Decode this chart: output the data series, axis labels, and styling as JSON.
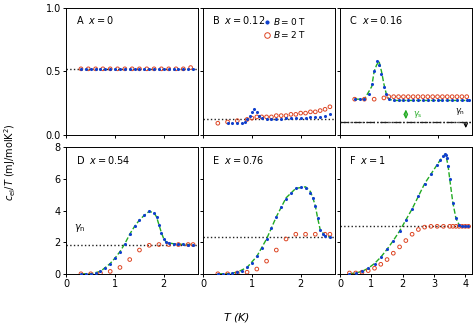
{
  "panels": [
    {
      "label": "A",
      "x_val": "0",
      "xlim": [
        0,
        2.7
      ],
      "ylim": [
        0,
        1.0
      ],
      "yticks": [
        0.0,
        0.5,
        1.0
      ],
      "xticks": [
        0,
        1,
        2
      ],
      "gamma_n": 0.52,
      "show_legend": false,
      "blue_data": {
        "T": [
          0.3,
          0.4,
          0.5,
          0.6,
          0.7,
          0.8,
          0.9,
          1.0,
          1.1,
          1.2,
          1.3,
          1.4,
          1.5,
          1.6,
          1.7,
          1.8,
          1.9,
          2.0,
          2.1,
          2.2,
          2.3,
          2.4,
          2.5,
          2.6
        ],
        "c": [
          0.52,
          0.52,
          0.52,
          0.52,
          0.52,
          0.52,
          0.52,
          0.52,
          0.52,
          0.52,
          0.52,
          0.52,
          0.52,
          0.52,
          0.52,
          0.52,
          0.52,
          0.52,
          0.52,
          0.52,
          0.52,
          0.52,
          0.52,
          0.52
        ]
      },
      "red_data": {
        "T": [
          0.3,
          0.45,
          0.6,
          0.75,
          0.9,
          1.05,
          1.2,
          1.35,
          1.5,
          1.65,
          1.8,
          1.95,
          2.1,
          2.25,
          2.4,
          2.55
        ],
        "c": [
          0.52,
          0.52,
          0.52,
          0.52,
          0.52,
          0.52,
          0.52,
          0.52,
          0.52,
          0.52,
          0.52,
          0.52,
          0.52,
          0.52,
          0.52,
          0.53
        ]
      },
      "green_dashed": null
    },
    {
      "label": "B",
      "x_val": "0.12",
      "xlim": [
        0,
        2.7
      ],
      "ylim": [
        0,
        1.0
      ],
      "yticks": [
        0.0,
        0.5,
        1.0
      ],
      "xticks": [
        0,
        1,
        2
      ],
      "gamma_n": 0.12,
      "show_legend": true,
      "blue_data": {
        "T": [
          0.5,
          0.6,
          0.7,
          0.8,
          0.85,
          0.9,
          0.95,
          1.0,
          1.05,
          1.1,
          1.15,
          1.2,
          1.3,
          1.4,
          1.5,
          1.6,
          1.7,
          1.8,
          1.9,
          2.0,
          2.1,
          2.2,
          2.3,
          2.4,
          2.5,
          2.6
        ],
        "c": [
          0.09,
          0.09,
          0.09,
          0.09,
          0.1,
          0.12,
          0.15,
          0.18,
          0.2,
          0.18,
          0.15,
          0.13,
          0.12,
          0.12,
          0.12,
          0.12,
          0.13,
          0.13,
          0.13,
          0.13,
          0.13,
          0.14,
          0.14,
          0.14,
          0.15,
          0.16
        ]
      },
      "red_data": {
        "T": [
          0.3,
          0.5,
          0.7,
          0.9,
          1.0,
          1.1,
          1.2,
          1.3,
          1.4,
          1.5,
          1.6,
          1.7,
          1.8,
          1.9,
          2.0,
          2.1,
          2.2,
          2.3,
          2.4,
          2.5,
          2.6
        ],
        "c": [
          0.09,
          0.1,
          0.11,
          0.12,
          0.13,
          0.14,
          0.14,
          0.14,
          0.14,
          0.15,
          0.15,
          0.15,
          0.16,
          0.16,
          0.17,
          0.17,
          0.18,
          0.18,
          0.19,
          0.2,
          0.22
        ]
      },
      "green_dashed": null
    },
    {
      "label": "C",
      "x_val": "0.16",
      "xlim": [
        0,
        2.7
      ],
      "ylim": [
        0,
        1.0
      ],
      "yticks": [
        0.0,
        0.5,
        1.0
      ],
      "xticks": [
        0,
        1,
        2
      ],
      "gamma_n": 0.1,
      "gamma_s": 0.22,
      "gamma_line": 0.28,
      "show_legend": false,
      "blue_data": {
        "T": [
          0.3,
          0.4,
          0.5,
          0.6,
          0.65,
          0.7,
          0.75,
          0.8,
          0.85,
          0.9,
          0.95,
          1.0,
          1.1,
          1.2,
          1.3,
          1.4,
          1.5,
          1.6,
          1.7,
          1.8,
          1.9,
          2.0,
          2.1,
          2.2,
          2.3,
          2.4,
          2.5,
          2.6,
          2.65
        ],
        "c": [
          0.28,
          0.28,
          0.28,
          0.32,
          0.4,
          0.5,
          0.58,
          0.55,
          0.48,
          0.38,
          0.32,
          0.28,
          0.27,
          0.27,
          0.27,
          0.27,
          0.27,
          0.27,
          0.27,
          0.27,
          0.27,
          0.27,
          0.27,
          0.27,
          0.27,
          0.27,
          0.27,
          0.27,
          0.27
        ]
      },
      "red_data": {
        "T": [
          0.3,
          0.5,
          0.7,
          0.9,
          1.0,
          1.1,
          1.2,
          1.3,
          1.4,
          1.5,
          1.6,
          1.7,
          1.8,
          1.9,
          2.0,
          2.1,
          2.2,
          2.3,
          2.4,
          2.5,
          2.6
        ],
        "c": [
          0.28,
          0.28,
          0.28,
          0.29,
          0.3,
          0.3,
          0.3,
          0.3,
          0.3,
          0.3,
          0.3,
          0.3,
          0.3,
          0.3,
          0.3,
          0.3,
          0.3,
          0.3,
          0.3,
          0.3,
          0.3
        ]
      },
      "green_dashed": {
        "T": [
          0.3,
          0.5,
          0.65,
          0.7,
          0.75,
          0.8,
          0.85,
          0.9,
          0.95,
          1.0,
          1.1,
          1.2,
          1.3,
          1.4,
          1.5,
          1.6,
          1.7,
          1.8,
          1.9,
          2.0,
          2.1,
          2.2,
          2.3,
          2.4,
          2.5,
          2.6
        ],
        "c": [
          0.28,
          0.28,
          0.38,
          0.5,
          0.55,
          0.58,
          0.5,
          0.4,
          0.32,
          0.28,
          0.27,
          0.27,
          0.27,
          0.27,
          0.27,
          0.27,
          0.27,
          0.27,
          0.27,
          0.27,
          0.27,
          0.27,
          0.27,
          0.27,
          0.27,
          0.27
        ]
      }
    },
    {
      "label": "D",
      "x_val": "0.54",
      "xlim": [
        0,
        2.7
      ],
      "ylim": [
        0,
        8
      ],
      "yticks": [
        0,
        2,
        4,
        6,
        8
      ],
      "xticks": [
        0,
        1,
        2
      ],
      "gamma_n": 1.85,
      "show_legend": false,
      "blue_data": {
        "T": [
          0.3,
          0.4,
          0.5,
          0.6,
          0.7,
          0.8,
          0.9,
          1.0,
          1.1,
          1.2,
          1.3,
          1.4,
          1.5,
          1.6,
          1.7,
          1.8,
          1.85,
          1.9,
          1.95,
          2.0,
          2.05,
          2.1,
          2.2,
          2.3,
          2.4,
          2.5,
          2.6
        ],
        "c": [
          0.0,
          0.0,
          0.0,
          0.05,
          0.15,
          0.35,
          0.65,
          1.0,
          1.4,
          1.9,
          2.5,
          3.0,
          3.4,
          3.7,
          3.95,
          3.85,
          3.6,
          3.1,
          2.6,
          2.2,
          2.0,
          1.95,
          1.9,
          1.87,
          1.86,
          1.85,
          1.85
        ]
      },
      "red_data": {
        "T": [
          0.3,
          0.5,
          0.7,
          0.9,
          1.1,
          1.3,
          1.5,
          1.7,
          1.9,
          2.1,
          2.3,
          2.5,
          2.6
        ],
        "c": [
          0.0,
          0.0,
          0.05,
          0.15,
          0.4,
          0.9,
          1.5,
          1.8,
          1.85,
          1.85,
          1.85,
          1.85,
          1.85
        ]
      },
      "green_dashed": {
        "T": [
          0.3,
          0.5,
          0.7,
          0.9,
          1.0,
          1.1,
          1.2,
          1.3,
          1.4,
          1.5,
          1.6,
          1.7,
          1.8,
          1.85,
          1.9,
          1.95,
          2.0,
          2.05,
          2.1,
          2.2,
          2.3,
          2.4,
          2.5,
          2.6
        ],
        "c": [
          0.0,
          0.0,
          0.15,
          0.65,
          1.0,
          1.4,
          1.9,
          2.5,
          3.0,
          3.4,
          3.7,
          3.95,
          3.85,
          3.6,
          3.1,
          2.6,
          2.2,
          2.0,
          1.95,
          1.9,
          1.87,
          1.86,
          1.85,
          1.85
        ]
      }
    },
    {
      "label": "E",
      "x_val": "0.76",
      "xlim": [
        0,
        2.7
      ],
      "ylim": [
        0,
        8
      ],
      "yticks": [
        0,
        2,
        4,
        6,
        8
      ],
      "xticks": [
        0,
        1,
        2
      ],
      "gamma_n": 2.35,
      "show_legend": false,
      "blue_data": {
        "T": [
          0.3,
          0.4,
          0.5,
          0.6,
          0.7,
          0.8,
          0.9,
          1.0,
          1.1,
          1.2,
          1.3,
          1.4,
          1.5,
          1.6,
          1.7,
          1.8,
          1.9,
          2.0,
          2.1,
          2.2,
          2.25,
          2.3,
          2.35,
          2.4,
          2.45,
          2.5,
          2.6
        ],
        "c": [
          0.0,
          0.0,
          0.0,
          0.05,
          0.1,
          0.2,
          0.4,
          0.7,
          1.1,
          1.6,
          2.2,
          2.9,
          3.6,
          4.2,
          4.7,
          5.1,
          5.4,
          5.5,
          5.4,
          5.1,
          4.8,
          4.3,
          3.5,
          2.8,
          2.5,
          2.4,
          2.35
        ]
      },
      "red_data": {
        "T": [
          0.3,
          0.5,
          0.7,
          0.9,
          1.1,
          1.3,
          1.5,
          1.7,
          1.9,
          2.1,
          2.3,
          2.5,
          2.6
        ],
        "c": [
          0.0,
          0.0,
          0.05,
          0.1,
          0.3,
          0.8,
          1.5,
          2.2,
          2.5,
          2.5,
          2.5,
          2.5,
          2.5
        ]
      },
      "green_dashed": {
        "T": [
          0.3,
          0.5,
          0.7,
          0.9,
          1.1,
          1.3,
          1.5,
          1.7,
          1.9,
          2.1,
          2.2,
          2.25,
          2.3,
          2.35,
          2.4,
          2.5,
          2.6
        ],
        "c": [
          0.0,
          0.0,
          0.1,
          0.4,
          1.1,
          2.2,
          3.6,
          4.8,
          5.4,
          5.5,
          5.2,
          4.8,
          4.3,
          3.5,
          2.8,
          2.4,
          2.35
        ]
      }
    },
    {
      "label": "F",
      "x_val": "1",
      "xlim": [
        0,
        4.2
      ],
      "ylim": [
        0,
        8
      ],
      "yticks": [
        0,
        2,
        4,
        6,
        8
      ],
      "xticks": [
        0,
        1,
        2,
        3,
        4
      ],
      "gamma_n": 3.0,
      "show_legend": false,
      "blue_data": {
        "T": [
          0.3,
          0.5,
          0.7,
          0.9,
          1.1,
          1.3,
          1.5,
          1.7,
          1.9,
          2.1,
          2.3,
          2.5,
          2.7,
          2.9,
          3.1,
          3.2,
          3.3,
          3.35,
          3.38,
          3.4,
          3.45,
          3.5,
          3.6,
          3.7,
          3.8,
          3.9,
          4.0,
          4.1
        ],
        "c": [
          0.0,
          0.05,
          0.15,
          0.35,
          0.65,
          1.05,
          1.55,
          2.1,
          2.7,
          3.4,
          4.1,
          4.9,
          5.7,
          6.3,
          6.9,
          7.2,
          7.45,
          7.55,
          7.5,
          7.3,
          6.8,
          6.0,
          4.5,
          3.5,
          3.1,
          3.05,
          3.0,
          3.0
        ]
      },
      "red_data": {
        "T": [
          0.3,
          0.5,
          0.7,
          0.9,
          1.1,
          1.3,
          1.5,
          1.7,
          1.9,
          2.1,
          2.3,
          2.5,
          2.7,
          2.9,
          3.1,
          3.3,
          3.5,
          3.6,
          3.7,
          3.8,
          3.9,
          4.0,
          4.1
        ],
        "c": [
          0.05,
          0.05,
          0.1,
          0.2,
          0.35,
          0.6,
          0.9,
          1.3,
          1.7,
          2.1,
          2.5,
          2.8,
          2.95,
          3.0,
          3.0,
          3.0,
          3.0,
          3.0,
          3.0,
          3.0,
          3.0,
          3.0,
          3.0
        ]
      },
      "green_dashed": {
        "T": [
          0.3,
          0.5,
          0.7,
          0.9,
          1.1,
          1.3,
          1.5,
          1.7,
          1.9,
          2.1,
          2.3,
          2.5,
          2.7,
          2.9,
          3.1,
          3.2,
          3.3,
          3.35,
          3.38,
          3.4,
          3.45,
          3.5,
          3.6,
          3.7,
          3.8
        ],
        "c": [
          0.0,
          0.05,
          0.15,
          0.35,
          0.65,
          1.05,
          1.55,
          2.1,
          2.7,
          3.4,
          4.1,
          4.9,
          5.7,
          6.3,
          6.9,
          7.2,
          7.45,
          7.55,
          7.5,
          7.3,
          6.8,
          6.0,
          4.5,
          3.5,
          3.1
        ]
      }
    }
  ],
  "ylabel": "$c_{\\mathrm{el}}/T$ (mJ/molK$^{2}$)",
  "xlabel": "$T$ (K)",
  "blue_color": "#1040cc",
  "red_color": "#dd4422",
  "green_color": "#22aa22",
  "dotline_color": "#222222",
  "bg_color": "#ffffff"
}
